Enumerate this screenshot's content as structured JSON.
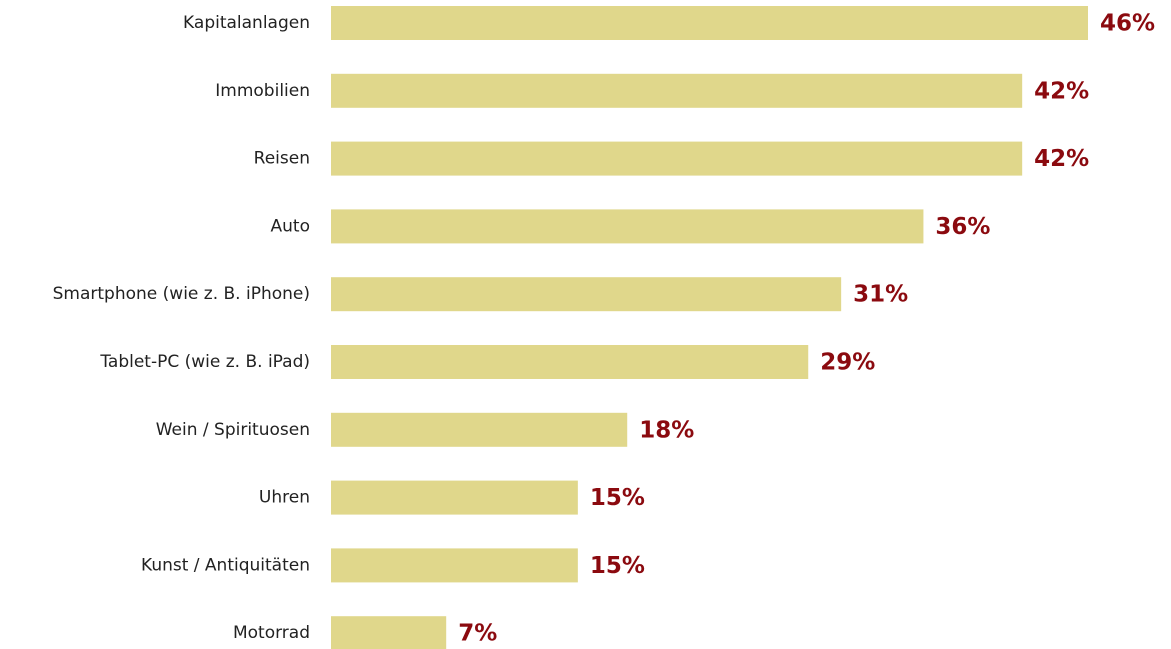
{
  "chart_data": {
    "type": "barh",
    "categories": [
      "Kapitalanlagen",
      "Immobilien",
      "Reisen",
      "Auto",
      "Smartphone (wie z. B. iPhone)",
      "Tablet-PC (wie z. B. iPad)",
      "Wein / Spirituosen",
      "Uhren",
      "Kunst / Antiquitäten",
      "Motorrad"
    ],
    "values": [
      46,
      42,
      42,
      36,
      31,
      29,
      18,
      15,
      15,
      7
    ],
    "value_labels": [
      "46%",
      "42%",
      "42%",
      "36%",
      "31%",
      "29%",
      "18%",
      "15%",
      "15%",
      "7%"
    ],
    "color": "#e0d78b",
    "label_color": "#8b0a0f"
  }
}
